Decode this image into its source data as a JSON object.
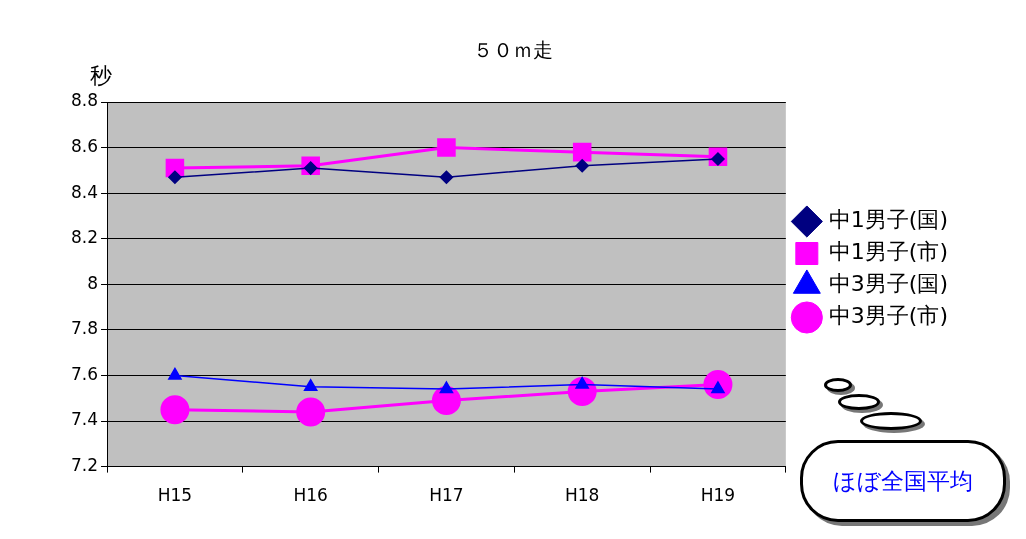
{
  "chart_data": {
    "type": "line",
    "title": "５０ｍ走",
    "ylabel": "秒",
    "categories": [
      "H15",
      "H16",
      "H17",
      "H18",
      "H19"
    ],
    "series": [
      {
        "name": "中1男子(国)",
        "color": "#000080",
        "marker": "diamond",
        "values": [
          8.47,
          8.51,
          8.47,
          8.52,
          8.55
        ]
      },
      {
        "name": "中1男子(市)",
        "color": "#ff00ff",
        "marker": "square",
        "values": [
          8.51,
          8.52,
          8.6,
          8.58,
          8.56
        ]
      },
      {
        "name": "中3男子(国)",
        "color": "#0000ff",
        "marker": "triangle",
        "values": [
          7.6,
          7.55,
          7.54,
          7.56,
          7.54
        ]
      },
      {
        "name": "中3男子(市)",
        "color": "#ff00ff",
        "marker": "circle",
        "values": [
          7.45,
          7.44,
          7.49,
          7.53,
          7.56
        ]
      }
    ],
    "ylim": [
      7.2,
      8.8
    ],
    "yticks": [
      7.2,
      7.4,
      7.6,
      7.8,
      8,
      8.2,
      8.4,
      8.6,
      8.8
    ],
    "grid": "y",
    "legend": "right",
    "annotations": [
      "ほぼ全国平均"
    ]
  }
}
